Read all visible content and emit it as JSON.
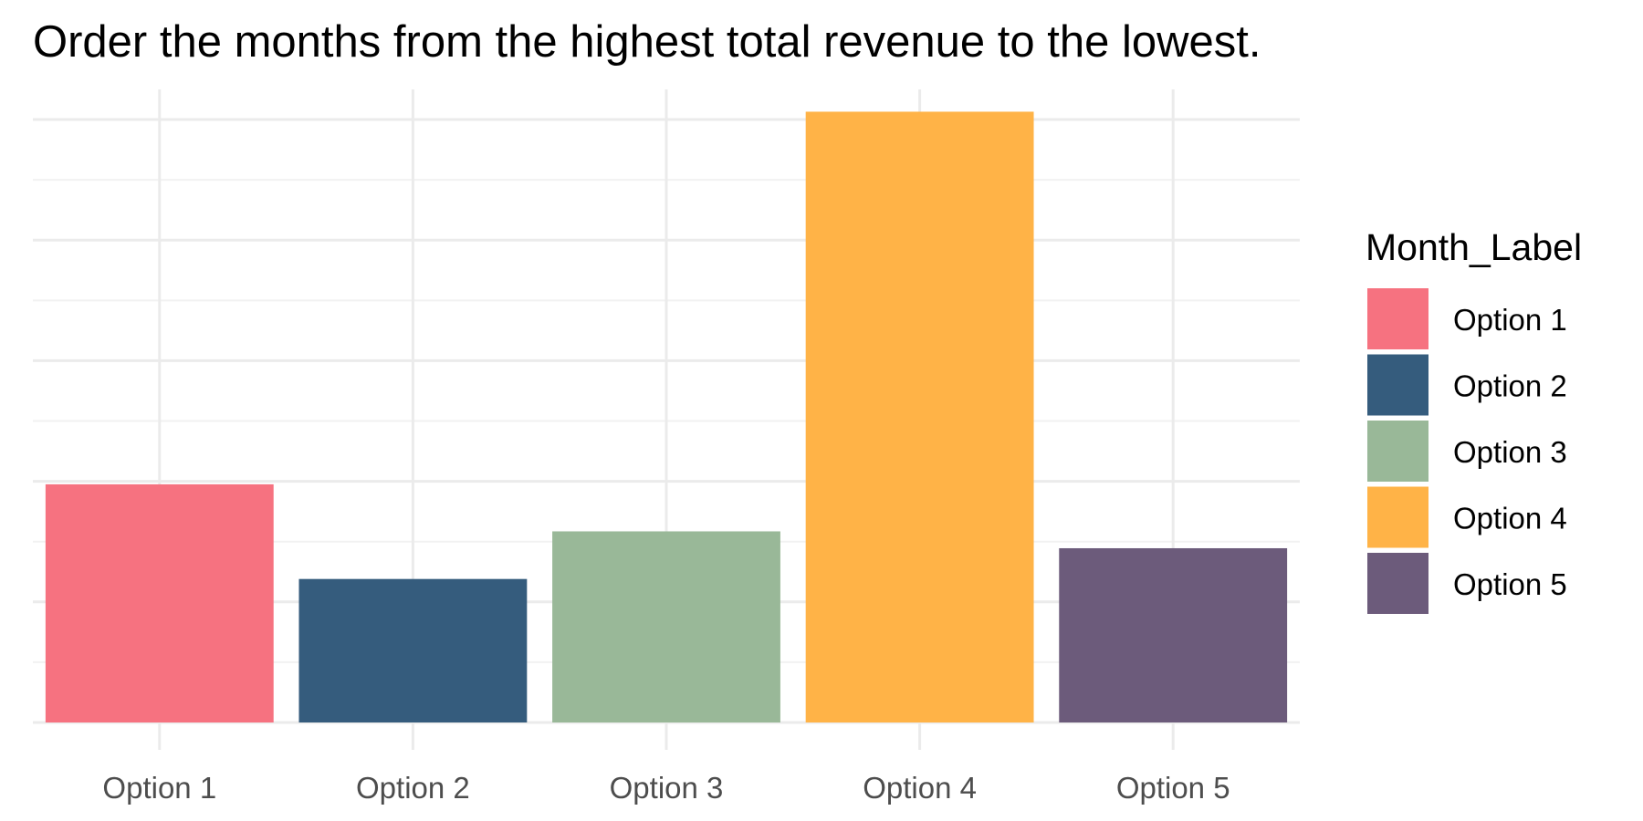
{
  "chart_data": {
    "type": "bar",
    "title": "Order the months from the highest total revenue to the lowest.",
    "xlabel": "",
    "ylabel": "",
    "categories": [
      "Option 1",
      "Option 2",
      "Option 3",
      "Option 4",
      "Option 5"
    ],
    "values": [
      39.5,
      23.8,
      31.7,
      101.3,
      28.9
    ],
    "ylim": [
      0,
      105
    ],
    "y_tick_labels_shown": false,
    "grid": true,
    "legend": {
      "title": "Month_Label",
      "placement": "right",
      "entries": [
        "Option 1",
        "Option 2",
        "Option 3",
        "Option 4",
        "Option 5"
      ]
    },
    "colors": [
      "#F67280",
      "#355C7D",
      "#99B898",
      "#FFB347",
      "#6C5B7B"
    ]
  }
}
